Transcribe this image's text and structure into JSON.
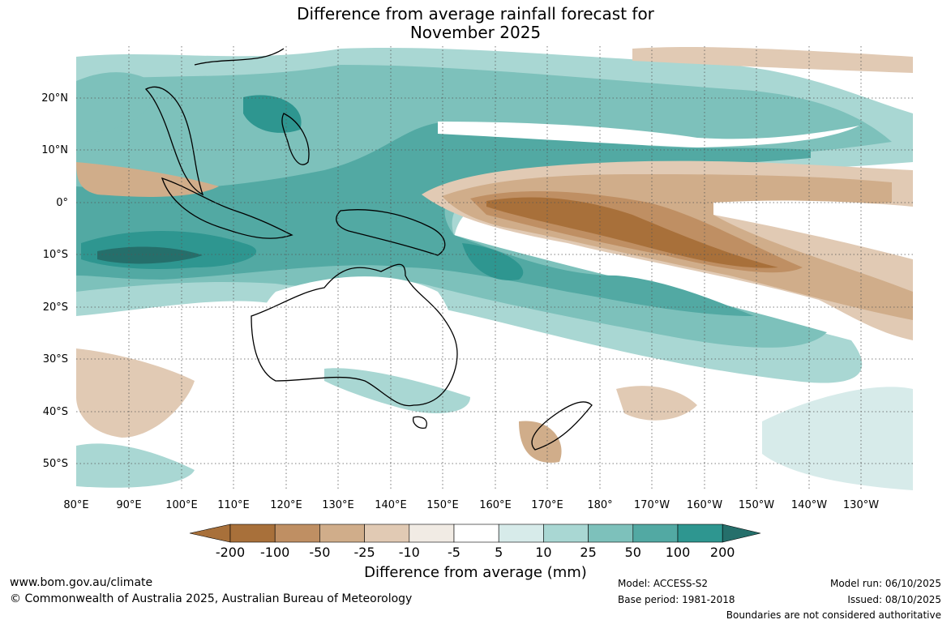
{
  "title": {
    "line1": "Difference from average rainfall forecast for",
    "line2": "November 2025"
  },
  "map": {
    "lon_labels": [
      "80°E",
      "90°E",
      "100°E",
      "110°E",
      "120°E",
      "130°E",
      "140°E",
      "150°E",
      "160°E",
      "170°E",
      "180°",
      "170°W",
      "160°W",
      "150°W",
      "140°W",
      "130°W"
    ],
    "lat_labels": [
      "20°N",
      "10°N",
      "0°",
      "10°S",
      "20°S",
      "30°S",
      "40°S",
      "50°S"
    ]
  },
  "legend": {
    "ticks": [
      "-200",
      "-100",
      "-50",
      "-25",
      "-10",
      "-5",
      "5",
      "10",
      "25",
      "50",
      "100",
      "200"
    ],
    "colors": [
      "#a8703a",
      "#bf8f63",
      "#d0ad8a",
      "#e1cab4",
      "#f1ebe4",
      "#ffffff",
      "#d7ebea",
      "#a9d7d3",
      "#7dc1bb",
      "#52a9a3",
      "#2e9690",
      "#256f6b"
    ],
    "units_label": "Difference from average (mm)"
  },
  "footer": {
    "url": "www.bom.gov.au/climate",
    "copyright": "© Commonwealth of Australia 2025, Australian Bureau of Meteorology",
    "model": "Model: ACCESS-S2",
    "base_period": "Base period: 1981-2018",
    "model_run": "Model run: 06/10/2025",
    "issued": "Issued: 08/10/2025",
    "disclaimer": "Boundaries are not considered authoritative"
  }
}
